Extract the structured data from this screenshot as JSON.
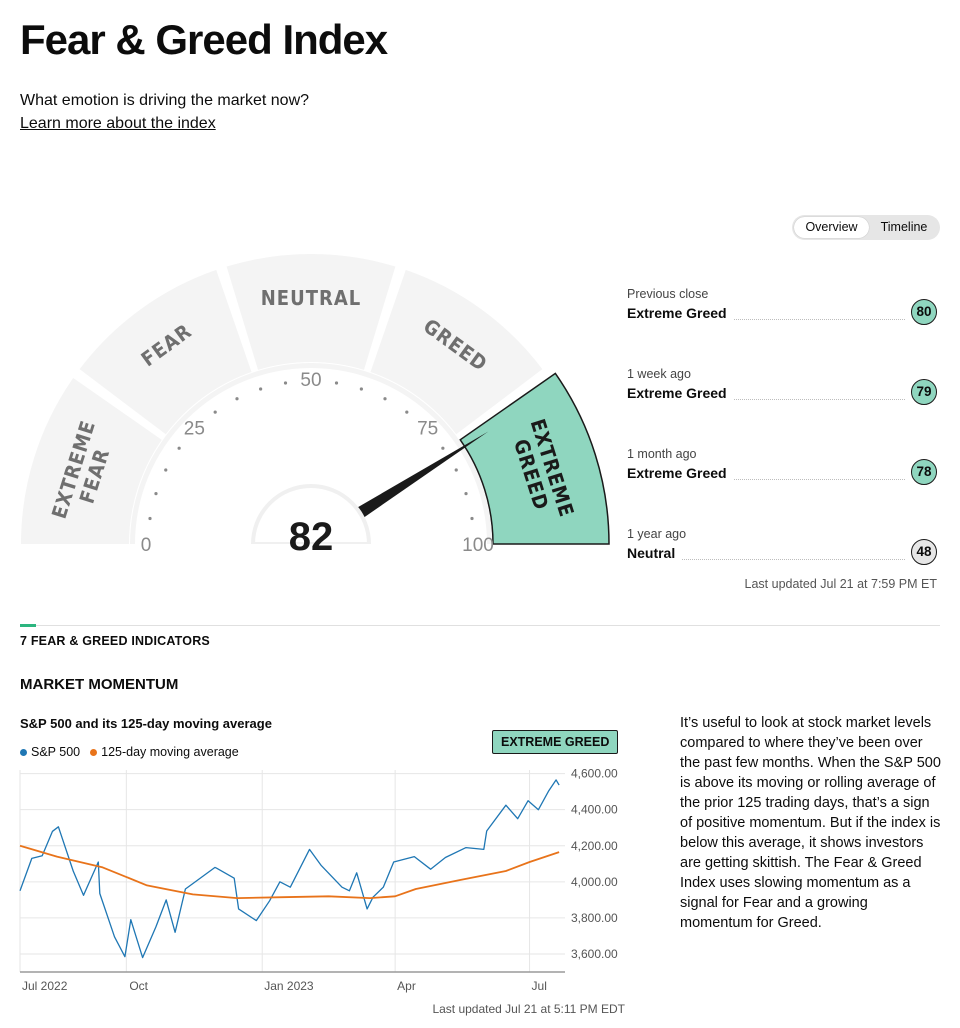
{
  "header": {
    "title": "Fear & Greed Index",
    "subtitle": "What emotion is driving the market now?",
    "learn_link": "Learn more about the index"
  },
  "view_toggle": {
    "options": [
      "Overview",
      "Timeline"
    ],
    "selected": "Overview"
  },
  "gauge": {
    "value": 82,
    "segments": [
      "EXTREME FEAR",
      "FEAR",
      "NEUTRAL",
      "GREED",
      "EXTREME GREED"
    ],
    "active_segment": "EXTREME GREED",
    "ticks": [
      "0",
      "25",
      "50",
      "75",
      "100"
    ]
  },
  "history": [
    {
      "label": "Previous close",
      "status": "Extreme Greed",
      "value": "80",
      "color": "#8fd6bf"
    },
    {
      "label": "1 week ago",
      "status": "Extreme Greed",
      "value": "79",
      "color": "#8fd6bf"
    },
    {
      "label": "1 month ago",
      "status": "Extreme Greed",
      "value": "78",
      "color": "#8fd6bf"
    },
    {
      "label": "1 year ago",
      "status": "Neutral",
      "value": "48",
      "color": "#e6e6e6"
    }
  ],
  "last_updated": "Last updated Jul 21 at 7:59 PM ET",
  "indicators": {
    "heading": "7 FEAR & GREED INDICATORS",
    "section": "MARKET MOMENTUM",
    "chart_updated": "Last updated Jul 21 at 5:11 PM EDT",
    "rating": "EXTREME GREED",
    "description": "It’s useful to look at stock market levels compared to where they’ve been over the past few months. When the S&P 500 is above its moving or rolling average of the prior 125 trading days, that’s a sign of positive momentum. But if the index is below this average, it shows investors are getting skittish. The Fear & Greed Index uses slowing momentum as a signal for Fear and a growing momentum for Greed."
  },
  "colors": {
    "accent_green": "#8fd6bf",
    "sp500": "#1f77b4",
    "moving_average": "#e8731a"
  },
  "chart_data": {
    "type": "line",
    "title": "S&P 500 and its 125-day moving average",
    "x_ticks": [
      "Jul 2022",
      "Oct",
      "Jan 2023",
      "Apr",
      "Jul"
    ],
    "y_ticks": [
      "4,600.00",
      "4,400.00",
      "4,200.00",
      "4,000.00",
      "3,800.00",
      "3,600.00"
    ],
    "ylim": [
      3500,
      4600
    ],
    "grid": true,
    "legend_position": "top-left",
    "series": [
      {
        "name": "S&P 500",
        "points": [
          [
            "2022-07-21",
            3950
          ],
          [
            "2022-07-29",
            4130
          ],
          [
            "2022-08-05",
            4145
          ],
          [
            "2022-08-12",
            4280
          ],
          [
            "2022-08-16",
            4305
          ],
          [
            "2022-08-26",
            4060
          ],
          [
            "2022-09-02",
            3925
          ],
          [
            "2022-09-12",
            4110
          ],
          [
            "2022-09-13",
            3935
          ],
          [
            "2022-09-23",
            3695
          ],
          [
            "2022-09-30",
            3585
          ],
          [
            "2022-10-04",
            3790
          ],
          [
            "2022-10-12",
            3580
          ],
          [
            "2022-10-21",
            3750
          ],
          [
            "2022-10-28",
            3900
          ],
          [
            "2022-11-03",
            3720
          ],
          [
            "2022-11-10",
            3960
          ],
          [
            "2022-11-15",
            3990
          ],
          [
            "2022-11-30",
            4080
          ],
          [
            "2022-12-01",
            4076
          ],
          [
            "2022-12-13",
            4020
          ],
          [
            "2022-12-16",
            3850
          ],
          [
            "2022-12-28",
            3785
          ],
          [
            "2023-01-06",
            3895
          ],
          [
            "2023-01-13",
            4000
          ],
          [
            "2023-01-20",
            3970
          ],
          [
            "2023-02-02",
            4180
          ],
          [
            "2023-02-10",
            4090
          ],
          [
            "2023-02-24",
            3970
          ],
          [
            "2023-03-01",
            3950
          ],
          [
            "2023-03-06",
            4050
          ],
          [
            "2023-03-13",
            3850
          ],
          [
            "2023-03-17",
            3915
          ],
          [
            "2023-03-24",
            3970
          ],
          [
            "2023-03-31",
            4110
          ],
          [
            "2023-04-14",
            4140
          ],
          [
            "2023-04-25",
            4070
          ],
          [
            "2023-05-05",
            4135
          ],
          [
            "2023-05-19",
            4190
          ],
          [
            "2023-05-31",
            4180
          ],
          [
            "2023-06-02",
            4282
          ],
          [
            "2023-06-15",
            4425
          ],
          [
            "2023-06-23",
            4350
          ],
          [
            "2023-06-30",
            4450
          ],
          [
            "2023-07-07",
            4400
          ],
          [
            "2023-07-14",
            4505
          ],
          [
            "2023-07-19",
            4565
          ],
          [
            "2023-07-21",
            4536
          ]
        ]
      },
      {
        "name": "125-day moving average",
        "points": [
          [
            "2022-07-21",
            4200
          ],
          [
            "2022-08-15",
            4140
          ],
          [
            "2022-09-15",
            4080
          ],
          [
            "2022-10-15",
            3980
          ],
          [
            "2022-11-15",
            3930
          ],
          [
            "2022-12-15",
            3910
          ],
          [
            "2023-01-15",
            3915
          ],
          [
            "2023-02-15",
            3920
          ],
          [
            "2023-03-15",
            3910
          ],
          [
            "2023-04-01",
            3920
          ],
          [
            "2023-04-15",
            3960
          ],
          [
            "2023-05-15",
            4010
          ],
          [
            "2023-06-15",
            4060
          ],
          [
            "2023-07-01",
            4110
          ],
          [
            "2023-07-21",
            4165
          ]
        ]
      }
    ]
  }
}
